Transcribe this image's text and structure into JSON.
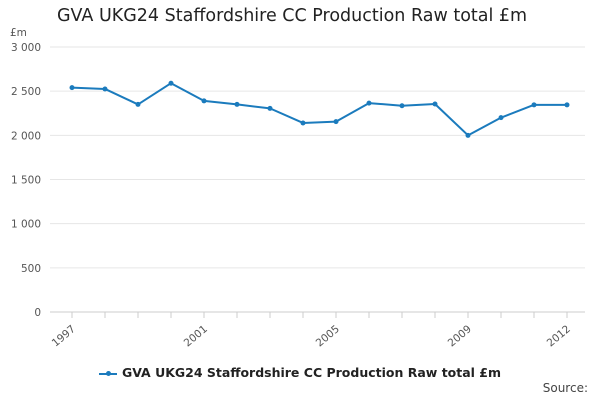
{
  "chart_data": {
    "type": "line",
    "title": "GVA UKG24 Staffordshire CC Production Raw total £m",
    "ylabel": "£m",
    "xlabel": "",
    "x": [
      1997,
      1998,
      1999,
      2000,
      2001,
      2002,
      2003,
      2004,
      2005,
      2006,
      2007,
      2008,
      2009,
      2010,
      2011,
      2012
    ],
    "series": [
      {
        "name": "GVA UKG24 Staffordshire CC Production Raw total £m",
        "values": [
          2540,
          2525,
          2350,
          2590,
          2390,
          2350,
          2305,
          2140,
          2155,
          2365,
          2335,
          2355,
          2000,
          2200,
          2345,
          2345
        ]
      }
    ],
    "xticks": [
      1997,
      2001,
      2005,
      2009,
      2012
    ],
    "xtick_labels": [
      "1997",
      "2001",
      "2005",
      "2009",
      "2012"
    ],
    "yticks": [
      0,
      500,
      1000,
      1500,
      2000,
      2500,
      3000
    ],
    "ytick_labels": [
      "0",
      "500",
      "1 000",
      "1 500",
      "2 000",
      "2 500",
      "3 000"
    ],
    "ylim": [
      0,
      3000
    ],
    "xlim": [
      1997,
      2012
    ],
    "grid": true,
    "legend_position": "bottom",
    "line_color": "#1b7bbd",
    "source_label": "Source:"
  }
}
